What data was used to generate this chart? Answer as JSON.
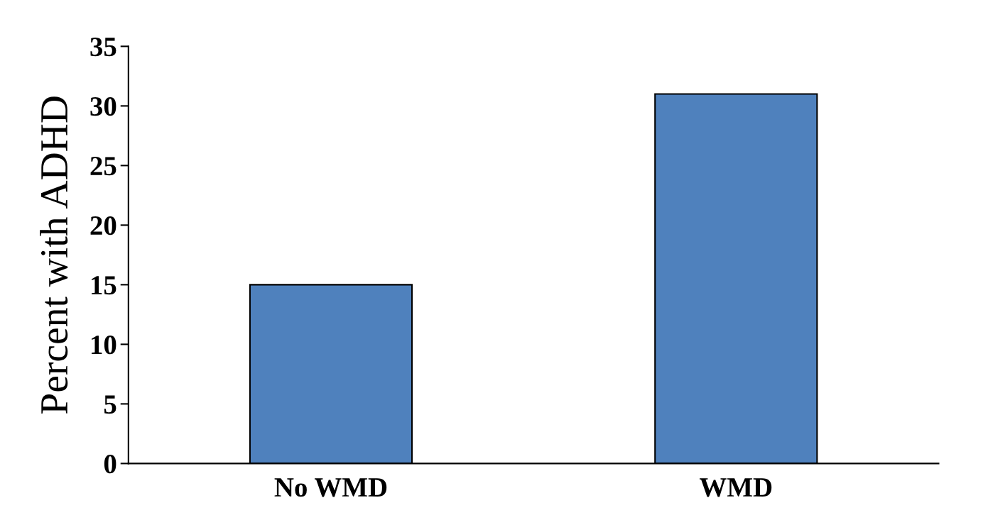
{
  "chart_data": {
    "type": "bar",
    "ylabel": "Percent with ADHD",
    "categories": [
      "No WMD",
      "WMD"
    ],
    "values": [
      15,
      31
    ],
    "color": "#4f81bd",
    "ylim": [
      0,
      35
    ],
    "yticks": [
      0,
      5,
      10,
      15,
      20,
      25,
      30,
      35
    ],
    "grid": false
  }
}
